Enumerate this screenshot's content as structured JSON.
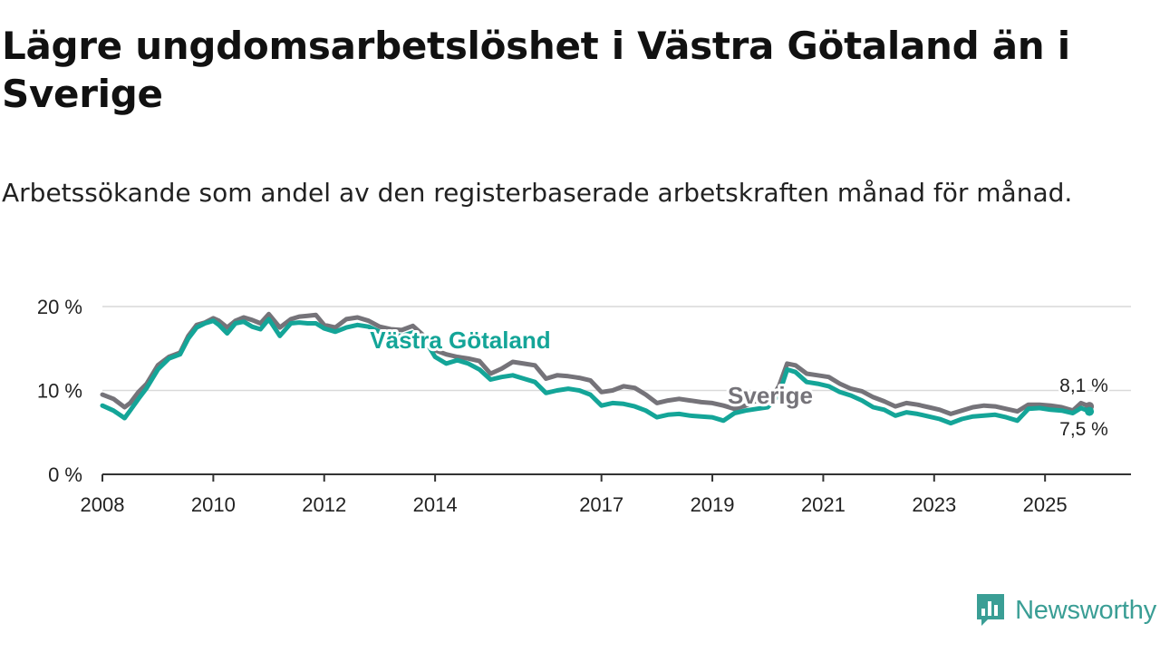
{
  "title": "Lägre ungdomsarbetslöshet i Västra Götaland än i Sverige",
  "subtitle": "Arbetssökande som andel av den registerbaserade arbetskraften månad för månad.",
  "brand": {
    "name": "Newsworthy",
    "icon": "newsworthy-logo-icon"
  },
  "colors": {
    "sverige": "#757379",
    "vastra_gotaland": "#14a598",
    "grid": "#d9d9d9",
    "axis": "#333333"
  },
  "chart_data": {
    "type": "line",
    "title": "Lägre ungdomsarbetslöshet i Västra Götaland än i Sverige",
    "xlabel": "",
    "ylabel": "",
    "ylim": [
      0,
      20
    ],
    "xlim": [
      2008,
      2026.55
    ],
    "yticks": [
      0,
      10,
      20
    ],
    "ytick_labels": [
      "0 %",
      "10 %",
      "20 %"
    ],
    "xticks": [
      2008,
      2010,
      2012,
      2014,
      2017,
      2019,
      2021,
      2023,
      2025
    ],
    "xtick_labels": [
      "2008",
      "2010",
      "2012",
      "2014",
      "2017",
      "2019",
      "2021",
      "2023",
      "2025"
    ],
    "grid": true,
    "series": [
      {
        "name": "Sverige",
        "label": "Sverige",
        "color": "#757379",
        "end_label": "8,1 %",
        "x": [
          2008.0,
          2008.2,
          2008.4,
          2008.5,
          2008.65,
          2008.8,
          2009.0,
          2009.2,
          2009.4,
          2009.55,
          2009.7,
          2009.85,
          2010.0,
          2010.1,
          2010.25,
          2010.4,
          2010.55,
          2010.7,
          2010.85,
          2011.0,
          2011.2,
          2011.4,
          2011.55,
          2011.7,
          2011.85,
          2012.0,
          2012.2,
          2012.4,
          2012.6,
          2012.8,
          2013.0,
          2013.2,
          2013.4,
          2013.6,
          2013.8,
          2014.0,
          2014.2,
          2014.4,
          2014.6,
          2014.8,
          2015.0,
          2015.2,
          2015.4,
          2015.6,
          2015.8,
          2016.0,
          2016.2,
          2016.4,
          2016.6,
          2016.8,
          2017.0,
          2017.2,
          2017.4,
          2017.6,
          2017.8,
          2018.0,
          2018.2,
          2018.4,
          2018.6,
          2018.8,
          2019.0,
          2019.2,
          2019.4,
          2019.6,
          2019.8,
          2020.0,
          2020.2,
          2020.35,
          2020.5,
          2020.7,
          2020.9,
          2021.1,
          2021.3,
          2021.5,
          2021.7,
          2021.9,
          2022.1,
          2022.3,
          2022.5,
          2022.7,
          2022.9,
          2023.1,
          2023.3,
          2023.5,
          2023.7,
          2023.9,
          2024.1,
          2024.3,
          2024.5,
          2024.7,
          2024.9,
          2025.1,
          2025.3,
          2025.5,
          2025.65,
          2025.8
        ],
        "values": [
          9.5,
          9.0,
          8.0,
          8.5,
          9.8,
          10.8,
          13.0,
          14.0,
          14.5,
          16.5,
          17.8,
          18.1,
          18.6,
          18.3,
          17.5,
          18.3,
          18.7,
          18.4,
          18.0,
          19.1,
          17.5,
          18.5,
          18.8,
          18.9,
          19.0,
          17.8,
          17.5,
          18.5,
          18.7,
          18.3,
          17.6,
          17.3,
          17.2,
          17.7,
          16.5,
          14.8,
          14.3,
          14.0,
          13.8,
          13.5,
          12.0,
          12.6,
          13.4,
          13.2,
          13.0,
          11.4,
          11.8,
          11.7,
          11.5,
          11.2,
          9.8,
          10.0,
          10.5,
          10.3,
          9.5,
          8.5,
          8.8,
          9.0,
          8.8,
          8.6,
          8.5,
          8.2,
          7.8,
          8.2,
          8.8,
          8.4,
          10.5,
          13.2,
          13.0,
          12.0,
          11.8,
          11.6,
          10.8,
          10.2,
          9.9,
          9.2,
          8.7,
          8.1,
          8.5,
          8.3,
          8.0,
          7.7,
          7.2,
          7.6,
          8.0,
          8.2,
          8.1,
          7.8,
          7.5,
          8.3,
          8.3,
          8.2,
          8.0,
          7.6,
          8.5,
          8.1
        ]
      },
      {
        "name": "Västra Götaland",
        "label": "Västra Götaland",
        "color": "#14a598",
        "end_label": "7,5 %",
        "x": [
          2008.0,
          2008.2,
          2008.4,
          2008.5,
          2008.65,
          2008.8,
          2009.0,
          2009.2,
          2009.4,
          2009.55,
          2009.7,
          2009.85,
          2010.0,
          2010.1,
          2010.25,
          2010.4,
          2010.55,
          2010.7,
          2010.85,
          2011.0,
          2011.2,
          2011.4,
          2011.55,
          2011.7,
          2011.85,
          2012.0,
          2012.2,
          2012.4,
          2012.6,
          2012.8,
          2013.0,
          2013.2,
          2013.4,
          2013.6,
          2013.8,
          2014.0,
          2014.2,
          2014.4,
          2014.6,
          2014.8,
          2015.0,
          2015.2,
          2015.4,
          2015.6,
          2015.8,
          2016.0,
          2016.2,
          2016.4,
          2016.6,
          2016.8,
          2017.0,
          2017.2,
          2017.4,
          2017.6,
          2017.8,
          2018.0,
          2018.2,
          2018.4,
          2018.6,
          2018.8,
          2019.0,
          2019.2,
          2019.4,
          2019.6,
          2019.8,
          2020.0,
          2020.2,
          2020.35,
          2020.5,
          2020.7,
          2020.9,
          2021.1,
          2021.3,
          2021.5,
          2021.7,
          2021.9,
          2022.1,
          2022.3,
          2022.5,
          2022.7,
          2022.9,
          2023.1,
          2023.3,
          2023.5,
          2023.7,
          2023.9,
          2024.1,
          2024.3,
          2024.5,
          2024.7,
          2024.9,
          2025.1,
          2025.3,
          2025.5,
          2025.65,
          2025.8
        ],
        "values": [
          8.2,
          7.6,
          6.7,
          7.6,
          9.0,
          10.3,
          12.5,
          13.8,
          14.3,
          16.2,
          17.5,
          18.0,
          18.3,
          17.8,
          16.8,
          18.0,
          18.2,
          17.6,
          17.3,
          18.5,
          16.5,
          18.0,
          18.1,
          18.0,
          18.0,
          17.4,
          17.0,
          17.5,
          17.8,
          17.6,
          17.0,
          16.6,
          16.5,
          16.9,
          16.2,
          14.0,
          13.2,
          13.6,
          13.2,
          12.5,
          11.3,
          11.6,
          11.8,
          11.4,
          11.0,
          9.7,
          10.0,
          10.2,
          10.0,
          9.5,
          8.2,
          8.5,
          8.4,
          8.1,
          7.6,
          6.8,
          7.1,
          7.2,
          7.0,
          6.9,
          6.8,
          6.4,
          7.3,
          7.6,
          7.8,
          8.0,
          9.5,
          12.5,
          12.2,
          11.0,
          10.8,
          10.5,
          9.8,
          9.4,
          8.8,
          8.0,
          7.7,
          7.0,
          7.4,
          7.2,
          6.9,
          6.6,
          6.1,
          6.6,
          6.9,
          7.0,
          7.1,
          6.8,
          6.4,
          7.8,
          7.9,
          7.7,
          7.6,
          7.3,
          7.9,
          7.5
        ]
      }
    ]
  }
}
